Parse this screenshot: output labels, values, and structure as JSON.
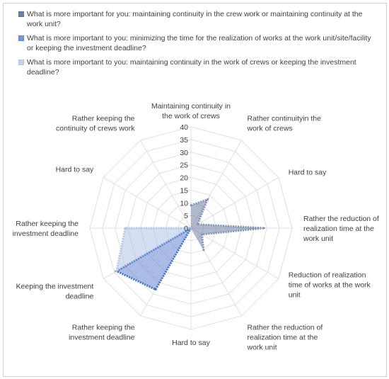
{
  "chart_data": {
    "type": "radar",
    "categories": [
      [
        "Maintaining continuity in",
        "the work of crews"
      ],
      [
        "Rather continuityin the",
        "work of crews"
      ],
      [
        "Hard to say"
      ],
      [
        "Rather the reduction of",
        "realization time at the",
        "work unit"
      ],
      [
        "Reduction of realization",
        "time of works at the work",
        "unit"
      ],
      [
        "Rather the reduction of",
        "realization time at the",
        "work unit"
      ],
      [
        "Hard to say"
      ],
      [
        "Rather keeping the",
        "investment deadline"
      ],
      [
        "Keeping the investment",
        "deadline"
      ],
      [
        "Rather keeping the",
        "investment deadline"
      ],
      [
        "Hard to say"
      ],
      [
        "Rather keeping the",
        "continuity of crews work"
      ]
    ],
    "rmax": 40,
    "ticks": [
      0,
      5,
      10,
      15,
      20,
      25,
      30,
      35,
      40
    ],
    "series": [
      {
        "name": "What is more important for you: maintaining continuity in the crew work or maintaining continuity at the work unit?",
        "color": "#8496b0",
        "fill": "rgba(112,128,165,0.55)",
        "values": [
          9,
          13,
          3,
          29,
          5,
          10,
          0,
          0,
          0,
          0,
          0,
          0
        ],
        "segments": [
          0,
          1,
          2,
          3,
          4,
          5
        ]
      },
      {
        "name": "What is more important to you: minimizing the time for the realization of works at the work unit/site/facility or keeping the investment deadline?",
        "color": "#4472c4",
        "fill": "rgba(114,143,211,0.6)",
        "values": [
          0,
          0,
          0,
          0,
          0,
          0,
          0,
          28,
          34,
          0,
          0,
          0
        ],
        "segments": [
          5,
          6,
          7,
          8,
          9
        ]
      },
      {
        "name": "What is more important to you: maintaining continuity in the work of crews or keeping the investment deadline?",
        "color": "#b4c7e7",
        "fill": "rgba(180,195,230,0.55)",
        "values": [
          0,
          0,
          0,
          0,
          0,
          0,
          0,
          0,
          34,
          26,
          0,
          0
        ],
        "segments": [
          8,
          9,
          10
        ]
      }
    ]
  },
  "legend": [
    "What is more important for you: maintaining continuity in the crew work or maintaining continuity at the work unit?",
    "What is more important to you: minimizing the time for the realization of works at the work unit/site/facility or keeping the investment deadline?",
    "What is more important to you: maintaining continuity in the work of crews or keeping the investment deadline?"
  ]
}
